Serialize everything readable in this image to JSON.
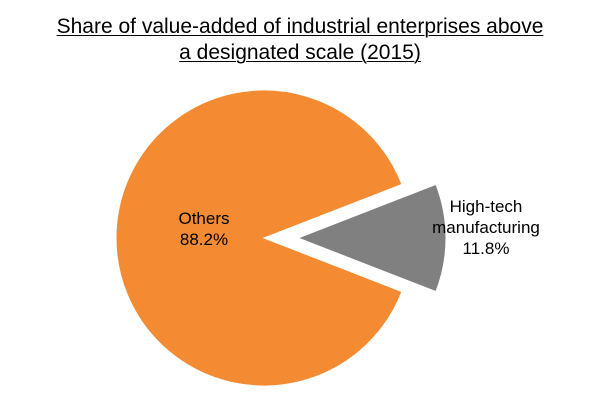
{
  "chart_data": {
    "type": "pie",
    "title_lines": [
      "Share of value-added of industrial enterprises above",
      "a designated scale (2015)"
    ],
    "slices": [
      {
        "name": "Others",
        "label_lines": [
          "Others"
        ],
        "value": 88.2,
        "value_label": "88.2%",
        "color": "#F48B33",
        "exploded": false
      },
      {
        "name": "High-tech manufacturing",
        "label_lines": [
          "High-tech",
          "manufacturing"
        ],
        "value": 11.8,
        "value_label": "11.8%",
        "color": "#808080",
        "exploded": true
      }
    ],
    "legend": "none"
  }
}
